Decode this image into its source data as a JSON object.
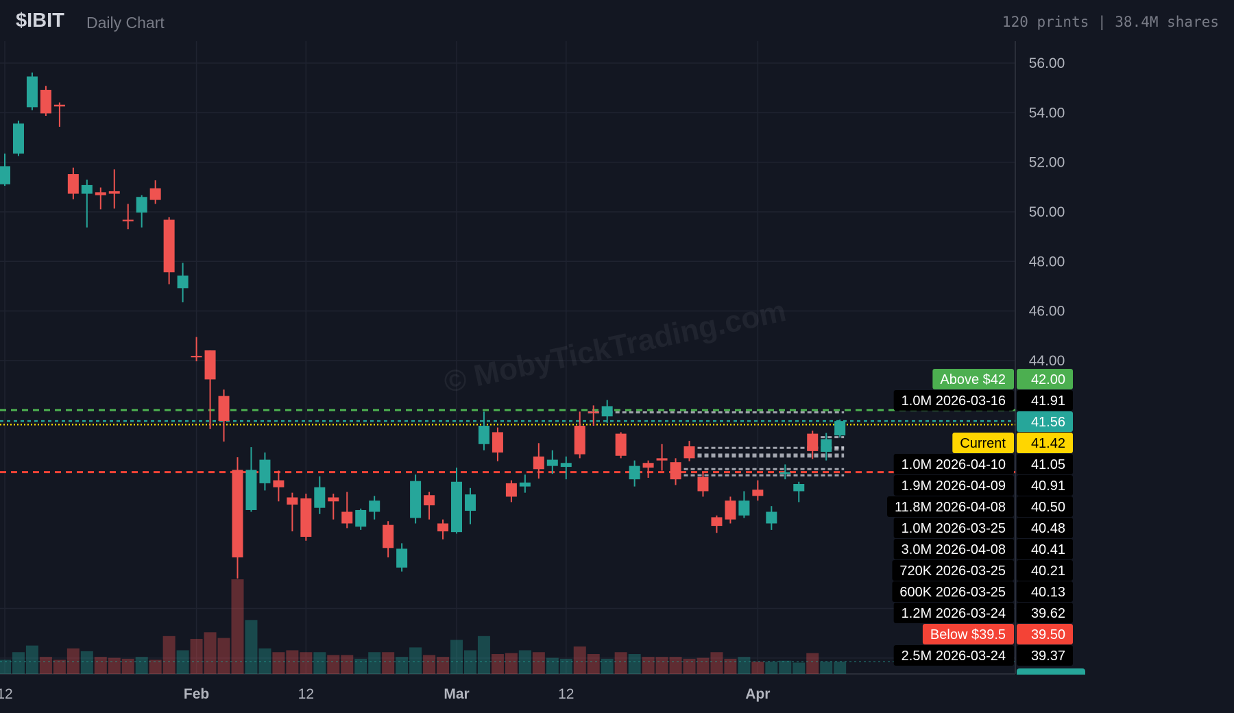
{
  "header": {
    "ticker": "$IBIT",
    "subtitle": "Daily Chart",
    "stats": "120 prints | 38.4M shares"
  },
  "watermark": "© MobyTickTrading.com",
  "colors": {
    "up": "#26a69a",
    "down": "#ef5350",
    "background": "#131722",
    "grid": "#1f2330",
    "above": "#4caf50",
    "below": "#f44336",
    "current": "#ffd600",
    "last": "#26a69a"
  },
  "chart_data": {
    "type": "candlestick",
    "title": "",
    "ylim": [
      35.0,
      56.6
    ],
    "y_ticks": [
      "56.00",
      "54.00",
      "52.00",
      "50.00",
      "48.00",
      "46.00",
      "44.00"
    ],
    "x_ticks": [
      {
        "label": "12",
        "date": "2026-01-12"
      },
      {
        "label": "Feb",
        "date": "2026-02-02"
      },
      {
        "label": "12",
        "date": "2026-02-12"
      },
      {
        "label": "Mar",
        "date": "2026-03-02"
      },
      {
        "label": "12",
        "date": "2026-03-12"
      },
      {
        "label": "Apr",
        "date": "2026-04-01"
      }
    ],
    "grid": true,
    "volume_note": "volume as fraction of largest bar",
    "candles": [
      [
        "2026-01-12",
        51.11,
        52.35,
        51.05,
        51.84,
        0.15
      ],
      [
        "2026-01-13",
        52.35,
        53.68,
        52.25,
        53.56,
        0.23
      ],
      [
        "2026-01-14",
        54.22,
        55.62,
        54.1,
        55.46,
        0.3
      ],
      [
        "2026-01-15",
        54.92,
        55.08,
        53.87,
        53.97,
        0.18
      ],
      [
        "2026-01-16",
        54.32,
        54.41,
        53.43,
        54.25,
        0.15
      ],
      [
        "2026-01-20",
        51.52,
        51.78,
        50.51,
        50.73,
        0.27
      ],
      [
        "2026-01-21",
        50.73,
        51.3,
        49.37,
        51.08,
        0.24
      ],
      [
        "2026-01-22",
        50.79,
        50.98,
        50.1,
        50.67,
        0.18
      ],
      [
        "2026-01-23",
        50.83,
        51.71,
        50.13,
        50.73,
        0.17
      ],
      [
        "2026-01-26",
        49.68,
        50.32,
        49.3,
        49.62,
        0.16
      ],
      [
        "2026-01-27",
        49.97,
        50.67,
        49.37,
        50.6,
        0.18
      ],
      [
        "2026-01-28",
        50.95,
        51.27,
        50.32,
        50.48,
        0.15
      ],
      [
        "2026-01-29",
        49.68,
        49.78,
        47.08,
        47.56,
        0.4
      ],
      [
        "2026-01-30",
        46.92,
        47.94,
        46.35,
        47.43,
        0.25
      ],
      [
        "2026-02-02",
        44.19,
        44.95,
        43.97,
        44.13,
        0.37
      ],
      [
        "2026-02-03",
        44.41,
        44.41,
        41.24,
        43.24,
        0.44
      ],
      [
        "2026-02-04",
        42.57,
        42.83,
        40.73,
        41.56,
        0.38
      ],
      [
        "2026-02-05",
        39.59,
        40.1,
        35.21,
        36.06,
        1.0
      ],
      [
        "2026-02-06",
        37.97,
        40.51,
        37.9,
        39.59,
        0.57
      ],
      [
        "2026-02-09",
        39.05,
        40.29,
        38.76,
        40.0,
        0.27
      ],
      [
        "2026-02-10",
        39.17,
        39.56,
        38.32,
        38.89,
        0.23
      ],
      [
        "2026-02-11",
        38.48,
        38.67,
        37.11,
        38.19,
        0.25
      ],
      [
        "2026-02-12",
        38.44,
        38.63,
        36.73,
        36.89,
        0.23
      ],
      [
        "2026-02-13",
        38.06,
        39.33,
        37.81,
        38.89,
        0.23
      ],
      [
        "2026-02-17",
        38.48,
        38.63,
        37.59,
        38.32,
        0.2
      ],
      [
        "2026-02-18",
        37.9,
        38.7,
        37.24,
        37.43,
        0.2
      ],
      [
        "2026-02-19",
        37.3,
        38.03,
        37.17,
        37.97,
        0.16
      ],
      [
        "2026-02-20",
        37.9,
        38.54,
        37.59,
        38.35,
        0.23
      ],
      [
        "2026-02-23",
        37.37,
        37.52,
        36.06,
        36.44,
        0.23
      ],
      [
        "2026-02-24",
        35.65,
        36.63,
        35.49,
        36.41,
        0.18
      ],
      [
        "2026-02-25",
        37.65,
        39.4,
        37.43,
        39.14,
        0.28
      ],
      [
        "2026-02-26",
        38.57,
        38.7,
        37.59,
        38.16,
        0.2
      ],
      [
        "2026-02-27",
        37.43,
        37.59,
        36.79,
        37.11,
        0.18
      ],
      [
        "2026-03-02",
        37.08,
        39.68,
        37.02,
        39.11,
        0.36
      ],
      [
        "2026-03-03",
        37.94,
        38.86,
        37.4,
        38.6,
        0.25
      ],
      [
        "2026-03-04",
        40.63,
        41.94,
        40.38,
        41.37,
        0.4
      ],
      [
        "2026-03-05",
        41.11,
        41.3,
        39.94,
        40.29,
        0.21
      ],
      [
        "2026-03-06",
        39.05,
        39.17,
        38.29,
        38.51,
        0.22
      ],
      [
        "2026-03-09",
        38.92,
        39.4,
        38.67,
        39.08,
        0.25
      ],
      [
        "2026-03-10",
        40.13,
        40.67,
        39.24,
        39.62,
        0.23
      ],
      [
        "2026-03-11",
        39.75,
        40.38,
        39.43,
        40.0,
        0.17
      ],
      [
        "2026-03-12",
        39.71,
        40.13,
        39.21,
        39.87,
        0.16
      ],
      [
        "2026-03-13",
        41.37,
        41.94,
        40.06,
        40.22,
        0.29
      ],
      [
        "2026-03-16",
        41.94,
        42.19,
        41.37,
        41.9,
        0.21
      ],
      [
        "2026-03-17",
        41.75,
        42.41,
        41.49,
        42.16,
        0.16
      ],
      [
        "2026-03-18",
        41.05,
        41.11,
        40.06,
        40.16,
        0.23
      ],
      [
        "2026-03-19",
        39.21,
        39.97,
        38.92,
        39.75,
        0.21
      ],
      [
        "2026-03-20",
        39.87,
        39.97,
        39.27,
        39.68,
        0.18
      ],
      [
        "2026-03-23",
        40.06,
        40.63,
        39.56,
        39.97,
        0.18
      ],
      [
        "2026-03-24",
        39.9,
        40.06,
        38.98,
        39.21,
        0.18
      ],
      [
        "2026-03-25",
        40.54,
        40.76,
        39.94,
        40.06,
        0.16
      ],
      [
        "2026-03-26",
        39.3,
        39.49,
        38.51,
        38.73,
        0.17
      ],
      [
        "2026-03-27",
        37.68,
        37.75,
        37.05,
        37.33,
        0.23
      ],
      [
        "2026-03-30",
        38.35,
        38.51,
        37.43,
        37.59,
        0.16
      ],
      [
        "2026-03-31",
        37.75,
        38.73,
        37.65,
        38.35,
        0.18
      ],
      [
        "2026-04-01",
        38.79,
        39.17,
        38.35,
        38.54,
        0.13
      ],
      [
        "2026-04-02",
        37.43,
        38.13,
        37.17,
        37.9,
        0.13
      ],
      [
        "2026-04-06",
        39.43,
        39.81,
        39.21,
        39.49,
        0.14
      ],
      [
        "2026-04-07",
        38.73,
        39.11,
        38.29,
        39.02,
        0.12
      ],
      [
        "2026-04-08",
        41.05,
        41.17,
        40.03,
        40.35,
        0.22
      ],
      [
        "2026-04-09",
        40.32,
        41.08,
        39.97,
        40.83,
        0.13
      ],
      [
        "2026-04-10",
        40.98,
        41.62,
        40.89,
        41.56,
        0.13
      ]
    ],
    "levels": [
      {
        "kind": "above",
        "label": "Above $42",
        "price": "42.00",
        "value": 42.0
      },
      {
        "kind": "last",
        "label": "",
        "price": "41.56",
        "value": 41.56
      },
      {
        "kind": "current",
        "label": "Current",
        "price": "41.42",
        "value": 41.42
      },
      {
        "kind": "below",
        "label": "Below $39.5",
        "price": "39.50",
        "value": 39.5
      }
    ],
    "prints": [
      {
        "size": "1.0M",
        "date": "2026-03-16",
        "price": "41.91"
      },
      {
        "size": "1.0M",
        "date": "2026-04-10",
        "price": "41.05"
      },
      {
        "size": "1.9M",
        "date": "2026-04-09",
        "price": "40.91"
      },
      {
        "size": "11.8M",
        "date": "2026-04-08",
        "price": "40.50"
      },
      {
        "size": "1.0M",
        "date": "2026-03-25",
        "price": "40.48"
      },
      {
        "size": "3.0M",
        "date": "2026-04-08",
        "price": "40.41"
      },
      {
        "size": "720K",
        "date": "2026-03-25",
        "price": "40.21"
      },
      {
        "size": "600K",
        "date": "2026-03-25",
        "price": "40.13"
      },
      {
        "size": "1.2M",
        "date": "2026-03-24",
        "price": "39.62"
      },
      {
        "size": "2.5M",
        "date": "2026-03-24",
        "price": "39.37"
      }
    ],
    "tag_order": [
      "L0",
      "P0",
      "L1",
      "L2",
      "P1",
      "P2",
      "P3",
      "P4",
      "P5",
      "P6",
      "P7",
      "P8",
      "L3",
      "P9"
    ]
  }
}
